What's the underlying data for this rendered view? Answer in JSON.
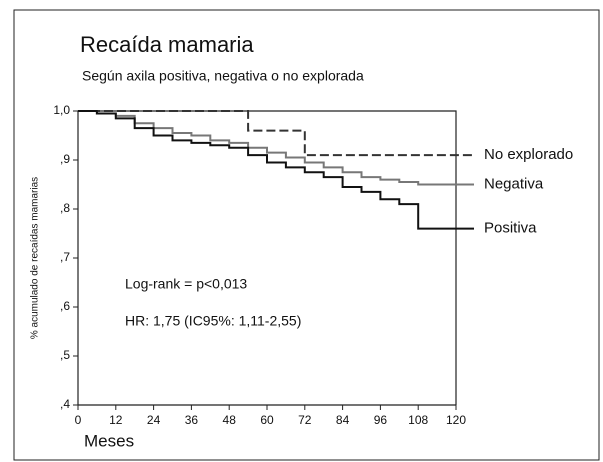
{
  "chart_data": {
    "type": "step-line",
    "title": "Recaída mamaria",
    "subtitle": "Según axila positiva, negativa o no explorada",
    "x_label": "Meses",
    "y_label": "% acumulado de recaídas mamarias",
    "annotations": [
      "Log-rank = p<0,013",
      "HR: 1,75 (IC95%: 1,11-2,55)"
    ],
    "x": [
      0,
      6,
      12,
      18,
      24,
      30,
      36,
      42,
      48,
      54,
      60,
      66,
      72,
      78,
      84,
      90,
      96,
      102,
      108,
      114,
      120
    ],
    "series": [
      {
        "name": "No explorado",
        "color": "#333333",
        "dash": "dashed",
        "values": [
          1,
          1,
          1,
          1,
          1,
          1,
          1,
          1,
          1,
          0.96,
          0.96,
          0.96,
          0.91,
          0.91,
          0.91,
          0.91,
          0.91,
          0.91,
          0.91,
          0.91,
          0.91
        ]
      },
      {
        "name": "Negativa",
        "color": "#777777",
        "dash": "solid",
        "values": [
          1,
          0.995,
          0.99,
          0.975,
          0.965,
          0.955,
          0.95,
          0.94,
          0.935,
          0.925,
          0.915,
          0.905,
          0.895,
          0.885,
          0.875,
          0.865,
          0.86,
          0.855,
          0.85,
          0.85,
          0.85
        ]
      },
      {
        "name": "Positiva",
        "color": "#111111",
        "dash": "solid",
        "values": [
          1,
          0.995,
          0.985,
          0.965,
          0.95,
          0.94,
          0.935,
          0.93,
          0.925,
          0.91,
          0.895,
          0.885,
          0.875,
          0.865,
          0.845,
          0.835,
          0.82,
          0.81,
          0.76,
          0.76,
          0.76
        ]
      }
    ],
    "xlim": [
      0,
      120
    ],
    "xticks": [
      0,
      12,
      24,
      36,
      48,
      60,
      72,
      84,
      96,
      108,
      120
    ],
    "ylim": [
      0.4,
      1.0
    ],
    "yticks": [
      {
        "value": 0.4,
        "label": ",4"
      },
      {
        "value": 0.5,
        "label": ",5"
      },
      {
        "value": 0.6,
        "label": ",6"
      },
      {
        "value": 0.7,
        "label": ",7"
      },
      {
        "value": 0.8,
        "label": ",8"
      },
      {
        "value": 0.9,
        "label": ",9"
      },
      {
        "value": 1.0,
        "label": "1,0"
      }
    ],
    "grid": false
  }
}
